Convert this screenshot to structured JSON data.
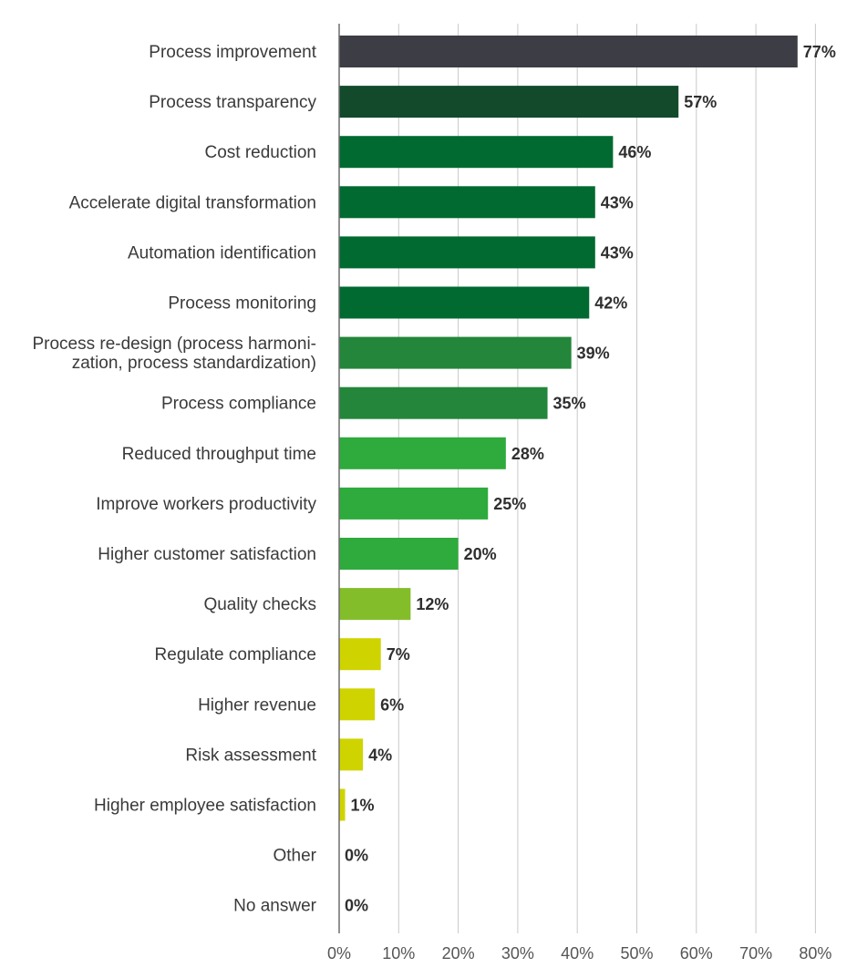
{
  "chart_data": {
    "type": "bar",
    "orientation": "horizontal",
    "categories": [
      "Process improvement",
      "Process transparency",
      "Cost reduction",
      "Accelerate digital transformation",
      "Automation identification",
      "Process monitoring",
      "Process re-design (process harmoni-\nzation, process standardization)",
      "Process compliance",
      "Reduced throughput time",
      "Improve workers productivity",
      "Higher customer satisfaction",
      "Quality checks",
      "Regulate compliance",
      "Higher revenue",
      "Risk assessment",
      "Higher employee satisfaction",
      "Other",
      "No answer"
    ],
    "values": [
      77,
      57,
      46,
      43,
      43,
      42,
      39,
      35,
      28,
      25,
      20,
      12,
      7,
      6,
      4,
      1,
      0,
      0
    ],
    "value_labels": [
      "77%",
      "57%",
      "46%",
      "43%",
      "43%",
      "42%",
      "39%",
      "35%",
      "28%",
      "25%",
      "20%",
      "12%",
      "7%",
      "6%",
      "4%",
      "1%",
      "0%",
      "0%"
    ],
    "bar_colors": [
      "#3d3d45",
      "#134a2b",
      "#006a30",
      "#006a30",
      "#006a30",
      "#006a30",
      "#23863a",
      "#23863a",
      "#2eab3c",
      "#2eab3c",
      "#2eab3c",
      "#84bd2a",
      "#cfd400",
      "#cfd400",
      "#cfd400",
      "#cfd400",
      "#cfd400",
      "#cfd400"
    ],
    "xlim": [
      0,
      80
    ],
    "xticks": [
      0,
      10,
      20,
      30,
      40,
      50,
      60,
      70,
      80
    ],
    "xtick_labels": [
      "0%",
      "10%",
      "20%",
      "30%",
      "40%",
      "50%",
      "60%",
      "70%",
      "80%"
    ],
    "grid": "vertical",
    "title": "",
    "xlabel": "",
    "ylabel": ""
  }
}
